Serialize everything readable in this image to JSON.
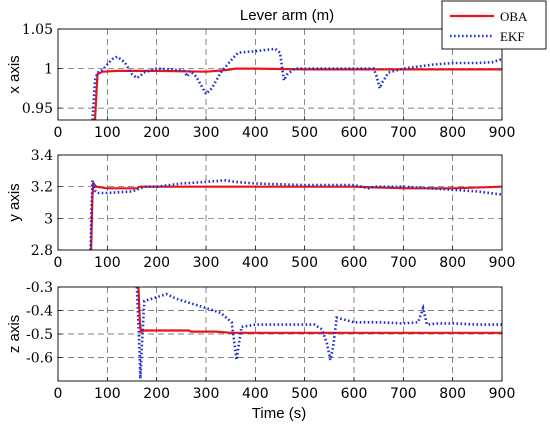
{
  "chart_data": [
    {
      "type": "line",
      "panel": "x",
      "title": "Lever arm (m)",
      "ylabel": "x axis",
      "xlim": [
        0,
        900
      ],
      "ylim": [
        0.935,
        1.05
      ],
      "xticks": [
        0,
        100,
        200,
        300,
        400,
        500,
        600,
        700,
        800,
        900
      ],
      "yticks": [
        0.95,
        1,
        1.05
      ],
      "ytick_labels": [
        "0.95",
        "1",
        "1.05"
      ],
      "series": [
        {
          "name": "OBA",
          "color": "#e8141b",
          "style": "solid",
          "points": [
            [
              75,
              0.935
            ],
            [
              78,
              0.97
            ],
            [
              80,
              0.993
            ],
            [
              90,
              0.996
            ],
            [
              120,
              0.997
            ],
            [
              200,
              0.997
            ],
            [
              300,
              0.996
            ],
            [
              340,
              0.998
            ],
            [
              360,
              1.0
            ],
            [
              400,
              1.0
            ],
            [
              500,
              0.999
            ],
            [
              600,
              0.999
            ],
            [
              700,
              0.999
            ],
            [
              800,
              0.999
            ],
            [
              900,
              0.999
            ]
          ]
        },
        {
          "name": "EKF",
          "color": "#2030d0",
          "style": "dotted",
          "points": [
            [
              70,
              0.935
            ],
            [
              72,
              0.955
            ],
            [
              75,
              0.985
            ],
            [
              80,
              0.995
            ],
            [
              90,
              0.998
            ],
            [
              100,
              1.005
            ],
            [
              110,
              1.012
            ],
            [
              120,
              1.015
            ],
            [
              135,
              1.008
            ],
            [
              150,
              0.993
            ],
            [
              160,
              0.988
            ],
            [
              175,
              0.995
            ],
            [
              200,
              1.0
            ],
            [
              230,
              0.999
            ],
            [
              255,
              0.997
            ],
            [
              262,
              0.99
            ],
            [
              268,
              0.997
            ],
            [
              280,
              0.99
            ],
            [
              300,
              0.968
            ],
            [
              312,
              0.975
            ],
            [
              330,
              0.995
            ],
            [
              350,
              1.01
            ],
            [
              365,
              1.02
            ],
            [
              400,
              1.022
            ],
            [
              440,
              1.025
            ],
            [
              450,
              1.02
            ],
            [
              458,
              0.985
            ],
            [
              465,
              0.993
            ],
            [
              480,
              1.0
            ],
            [
              520,
              1.0
            ],
            [
              560,
              1.0
            ],
            [
              640,
              1.0
            ],
            [
              646,
              0.99
            ],
            [
              652,
              0.975
            ],
            [
              658,
              0.983
            ],
            [
              670,
              0.995
            ],
            [
              700,
              1.0
            ],
            [
              760,
              1.005
            ],
            [
              800,
              1.007
            ],
            [
              850,
              1.007
            ],
            [
              880,
              1.008
            ],
            [
              900,
              1.012
            ]
          ]
        }
      ],
      "legend": "top-right"
    },
    {
      "type": "line",
      "panel": "y",
      "ylabel": "y axis",
      "xlim": [
        0,
        900
      ],
      "ylim": [
        2.8,
        3.4
      ],
      "xticks": [
        0,
        100,
        200,
        300,
        400,
        500,
        600,
        700,
        800,
        900
      ],
      "yticks": [
        2.8,
        3,
        3.2,
        3.4
      ],
      "ytick_labels": [
        "2.8",
        "3",
        "3.2",
        "3.4"
      ],
      "series": [
        {
          "name": "OBA",
          "color": "#e8141b",
          "style": "solid",
          "points": [
            [
              67,
              2.8
            ],
            [
              70,
              3.15
            ],
            [
              72,
              3.22
            ],
            [
              78,
              3.2
            ],
            [
              100,
              3.19
            ],
            [
              160,
              3.19
            ],
            [
              165,
              3.2
            ],
            [
              200,
              3.2
            ],
            [
              300,
              3.2
            ],
            [
              400,
              3.2
            ],
            [
              500,
              3.2
            ],
            [
              600,
              3.2
            ],
            [
              700,
              3.19
            ],
            [
              800,
              3.19
            ],
            [
              900,
              3.2
            ]
          ]
        },
        {
          "name": "EKF",
          "color": "#2030d0",
          "style": "dotted",
          "points": [
            [
              66,
              2.8
            ],
            [
              68,
              3.05
            ],
            [
              70,
              3.24
            ],
            [
              72,
              3.22
            ],
            [
              76,
              3.17
            ],
            [
              80,
              3.16
            ],
            [
              100,
              3.16
            ],
            [
              150,
              3.17
            ],
            [
              160,
              3.18
            ],
            [
              175,
              3.2
            ],
            [
              200,
              3.2
            ],
            [
              250,
              3.22
            ],
            [
              300,
              3.23
            ],
            [
              340,
              3.24
            ],
            [
              360,
              3.23
            ],
            [
              400,
              3.22
            ],
            [
              500,
              3.21
            ],
            [
              600,
              3.21
            ],
            [
              630,
              3.19
            ],
            [
              640,
              3.2
            ],
            [
              700,
              3.2
            ],
            [
              800,
              3.18
            ],
            [
              850,
              3.17
            ],
            [
              900,
              3.15
            ]
          ]
        }
      ]
    },
    {
      "type": "line",
      "panel": "z",
      "ylabel": "z axis",
      "xlabel": "Time (s)",
      "xlim": [
        0,
        900
      ],
      "ylim": [
        -0.7,
        -0.3
      ],
      "xticks": [
        0,
        100,
        200,
        300,
        400,
        500,
        600,
        700,
        800,
        900
      ],
      "yticks": [
        -0.6,
        -0.5,
        -0.4,
        -0.3
      ],
      "ytick_labels": [
        "-0.6",
        "-0.5",
        "-0.4",
        "-0.3"
      ],
      "series": [
        {
          "name": "OBA",
          "color": "#e8141b",
          "style": "solid",
          "points": [
            [
              163,
              -0.3
            ],
            [
              166,
              -0.45
            ],
            [
              168,
              -0.49
            ],
            [
              175,
              -0.485
            ],
            [
              220,
              -0.485
            ],
            [
              265,
              -0.485
            ],
            [
              270,
              -0.49
            ],
            [
              320,
              -0.49
            ],
            [
              350,
              -0.495
            ],
            [
              400,
              -0.495
            ],
            [
              500,
              -0.495
            ],
            [
              600,
              -0.495
            ],
            [
              700,
              -0.495
            ],
            [
              800,
              -0.495
            ],
            [
              900,
              -0.495
            ]
          ]
        },
        {
          "name": "EKF",
          "color": "#2030d0",
          "style": "dotted",
          "points": [
            [
              160,
              -0.3
            ],
            [
              164,
              -0.5
            ],
            [
              167,
              -0.69
            ],
            [
              170,
              -0.55
            ],
            [
              175,
              -0.36
            ],
            [
              190,
              -0.35
            ],
            [
              220,
              -0.33
            ],
            [
              240,
              -0.35
            ],
            [
              270,
              -0.37
            ],
            [
              300,
              -0.39
            ],
            [
              330,
              -0.41
            ],
            [
              352,
              -0.45
            ],
            [
              357,
              -0.53
            ],
            [
              362,
              -0.61
            ],
            [
              366,
              -0.55
            ],
            [
              372,
              -0.47
            ],
            [
              400,
              -0.46
            ],
            [
              450,
              -0.46
            ],
            [
              490,
              -0.46
            ],
            [
              520,
              -0.46
            ],
            [
              535,
              -0.48
            ],
            [
              545,
              -0.54
            ],
            [
              552,
              -0.61
            ],
            [
              558,
              -0.55
            ],
            [
              565,
              -0.43
            ],
            [
              600,
              -0.45
            ],
            [
              650,
              -0.45
            ],
            [
              700,
              -0.455
            ],
            [
              730,
              -0.45
            ],
            [
              740,
              -0.39
            ],
            [
              748,
              -0.46
            ],
            [
              770,
              -0.455
            ],
            [
              800,
              -0.455
            ],
            [
              850,
              -0.46
            ],
            [
              900,
              -0.46
            ]
          ]
        }
      ]
    }
  ]
}
